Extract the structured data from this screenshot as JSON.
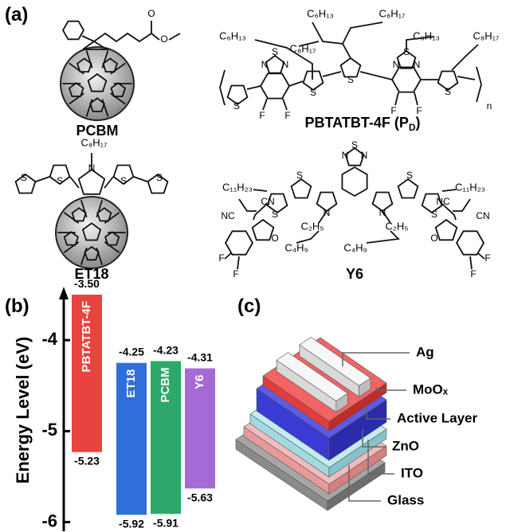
{
  "panel_labels": [
    "(a)",
    "(b)",
    "(c)"
  ],
  "molecules": [
    {
      "name": "PCBM",
      "atoms": [
        "O",
        "O"
      ]
    },
    {
      "name_parts": [
        "PBTATBT-4F (P",
        "D",
        ")"
      ],
      "repeat": "n",
      "substituents": [
        "C₆H₁₃",
        "C₈H₁₇",
        "C₆H₁₃",
        "C₈H₁₇",
        "C₆H₁₃",
        "C₈H₁₇"
      ],
      "atoms": [
        "N",
        "S",
        "N",
        "F",
        "F",
        "S",
        "S",
        "S",
        "N",
        "N",
        "F",
        "F",
        "S",
        "S"
      ]
    },
    {
      "name": "ET18",
      "substituents": [
        "C₈H₁₇"
      ],
      "atoms": [
        "N",
        "S",
        "S",
        "S",
        "S"
      ]
    },
    {
      "name": "Y6",
      "substituents": [
        "C₁₁H₂₃",
        "C₁₁H₂₃",
        "C₂H₅",
        "C₄H₉",
        "C₄H₉",
        "C₂H₅"
      ],
      "atoms": [
        "N",
        "S",
        "N",
        "S",
        "S",
        "S",
        "S",
        "N",
        "N",
        "O",
        "O",
        "F",
        "F",
        "F",
        "F"
      ],
      "cyano": [
        "NC",
        "CN",
        "NC",
        "CN"
      ]
    }
  ],
  "chart_data": {
    "type": "floating-bar",
    "y_label": "Energy Level (eV)",
    "categories": [
      "PBTATBT-4F",
      "ET18",
      "PCBM",
      "Y6"
    ],
    "colors": [
      "#e8443f",
      "#2f6fdc",
      "#2ea86a",
      "#a56ad6"
    ],
    "lumo": [
      -3.5,
      -4.25,
      -4.23,
      -4.31
    ],
    "lumo_labels": [
      "-3.50",
      "-4.25",
      "-4.23",
      "-4.31"
    ],
    "homo": [
      -5.23,
      -5.92,
      -5.91,
      -5.63
    ],
    "homo_labels": [
      "-5.23",
      "-5.92",
      "-5.91",
      "-5.63"
    ],
    "ylim": [
      -6.1,
      -3.5
    ],
    "yticks": [
      -4,
      -5,
      -6
    ]
  },
  "device_layers": [
    "Ag",
    "MoOₓ",
    "Active Layer",
    "ZnO",
    "ITO",
    "Glass"
  ]
}
